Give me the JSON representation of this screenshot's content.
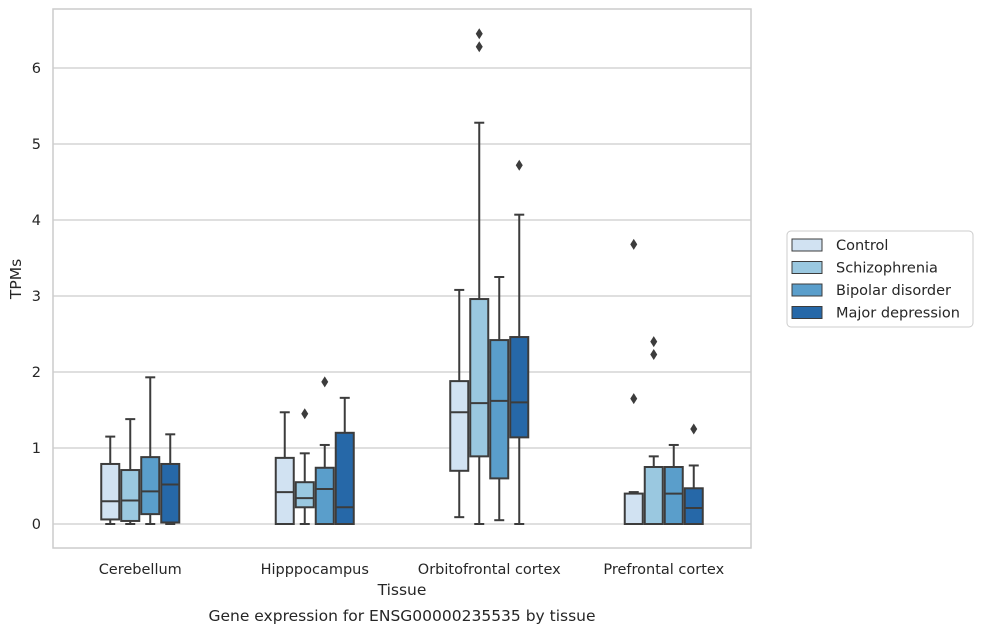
{
  "caption": "Gene expression for ENSG00000235535 by tissue",
  "chart_data": {
    "type": "box",
    "xlabel": "Tissue",
    "ylabel": "TPMs",
    "ylim": [
      -0.32,
      6.8
    ],
    "yticks": [
      0,
      1,
      2,
      3,
      4,
      5,
      6
    ],
    "grid": "horizontal",
    "legend_position": "right",
    "categories": [
      "Cerebellum",
      "Hipppocampus",
      "Orbitofrontal cortex",
      "Prefrontal cortex"
    ],
    "series": [
      {
        "name": "Control",
        "color": "#d1e2f2",
        "boxes": [
          {
            "whislo": 0.0,
            "q1": 0.06,
            "med": 0.3,
            "q3": 0.79,
            "whishi": 1.15,
            "fliers": []
          },
          {
            "whislo": 0.0,
            "q1": 0.0,
            "med": 0.42,
            "q3": 0.87,
            "whishi": 1.47,
            "fliers": []
          },
          {
            "whislo": 0.09,
            "q1": 0.7,
            "med": 1.47,
            "q3": 1.88,
            "whishi": 3.08,
            "fliers": []
          },
          {
            "whislo": 0.0,
            "q1": 0.0,
            "med": 0.0,
            "q3": 0.4,
            "whishi": 0.42,
            "fliers": [
              1.65,
              3.68
            ]
          }
        ]
      },
      {
        "name": "Schizophrenia",
        "color": "#9ac8e0",
        "boxes": [
          {
            "whislo": 0.0,
            "q1": 0.04,
            "med": 0.31,
            "q3": 0.71,
            "whishi": 1.38,
            "fliers": []
          },
          {
            "whislo": 0.0,
            "q1": 0.22,
            "med": 0.34,
            "q3": 0.55,
            "whishi": 0.93,
            "fliers": [
              1.45
            ]
          },
          {
            "whislo": 0.0,
            "q1": 0.89,
            "med": 1.59,
            "q3": 2.96,
            "whishi": 5.28,
            "fliers": [
              6.28,
              6.45
            ]
          },
          {
            "whislo": 0.0,
            "q1": 0.0,
            "med": 0.0,
            "q3": 0.75,
            "whishi": 0.89,
            "fliers": [
              2.23,
              2.4
            ]
          }
        ]
      },
      {
        "name": "Bipolar disorder",
        "color": "#5a9ecb",
        "boxes": [
          {
            "whislo": 0.0,
            "q1": 0.13,
            "med": 0.43,
            "q3": 0.88,
            "whishi": 1.93,
            "fliers": []
          },
          {
            "whislo": 0.0,
            "q1": 0.0,
            "med": 0.46,
            "q3": 0.74,
            "whishi": 1.04,
            "fliers": [
              1.87
            ]
          },
          {
            "whislo": 0.05,
            "q1": 0.6,
            "med": 1.62,
            "q3": 2.42,
            "whishi": 3.25,
            "fliers": []
          },
          {
            "whislo": 0.0,
            "q1": 0.0,
            "med": 0.4,
            "q3": 0.75,
            "whishi": 1.04,
            "fliers": []
          }
        ]
      },
      {
        "name": "Major depression",
        "color": "#2668a8",
        "boxes": [
          {
            "whislo": 0.0,
            "q1": 0.02,
            "med": 0.52,
            "q3": 0.79,
            "whishi": 1.18,
            "fliers": []
          },
          {
            "whislo": 0.0,
            "q1": 0.0,
            "med": 0.22,
            "q3": 1.2,
            "whishi": 1.66,
            "fliers": []
          },
          {
            "whislo": 0.0,
            "q1": 1.14,
            "med": 1.6,
            "q3": 2.46,
            "whishi": 4.07,
            "fliers": [
              4.72
            ]
          },
          {
            "whislo": 0.0,
            "q1": 0.0,
            "med": 0.21,
            "q3": 0.47,
            "whishi": 0.77,
            "fliers": [
              1.25
            ]
          }
        ]
      }
    ]
  }
}
